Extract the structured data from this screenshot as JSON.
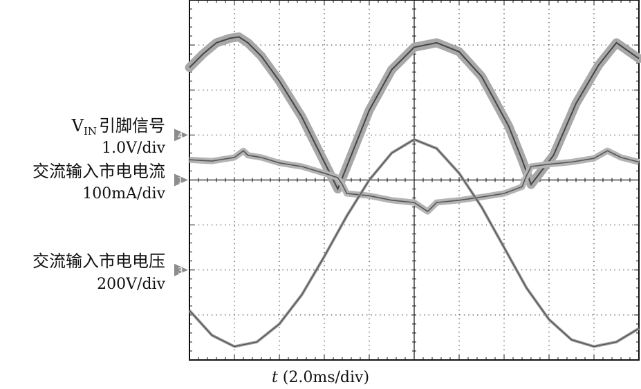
{
  "chart_data": {
    "type": "line",
    "title": "",
    "xlabel_var": "t",
    "xlabel_unit": "(2.0ms/div)",
    "grid": true,
    "divisions": {
      "x": 10,
      "y": 8
    },
    "x_unit": "div",
    "xlim": [
      0,
      10
    ],
    "ylim": [
      -4,
      4
    ],
    "channels": [
      {
        "marker": "4",
        "name_main": "V",
        "name_sub": "IN",
        "name_rest": "引脚信号",
        "scale": "1.0V/div"
      },
      {
        "marker": "1",
        "name": "交流输入市电电流",
        "scale": "100mA/div"
      },
      {
        "marker": "3",
        "name": "交流输入市电电压",
        "scale": "200V/div"
      }
    ],
    "series": [
      {
        "channel": "4",
        "x": [
          0,
          0.3,
          0.6,
          0.9,
          1.1,
          1.3,
          1.6,
          2.0,
          2.5,
          3.0,
          3.3,
          3.5,
          4.0,
          4.5,
          5.0,
          5.5,
          6.0,
          6.5,
          7.1,
          7.4,
          7.6,
          8.1,
          8.6,
          9.1,
          9.5,
          10
        ],
        "y": [
          2.5,
          2.8,
          3.05,
          3.15,
          3.18,
          3.05,
          2.75,
          2.2,
          1.4,
          0.4,
          -0.2,
          0.3,
          1.55,
          2.45,
          2.95,
          3.05,
          2.85,
          2.3,
          1.2,
          0.45,
          -0.1,
          0.55,
          1.7,
          2.55,
          3.05,
          2.7
        ]
      },
      {
        "channel": "1",
        "x": [
          0,
          0.5,
          1.0,
          1.2,
          1.3,
          1.6,
          2.0,
          2.5,
          3.0,
          3.3,
          3.4,
          3.5,
          4.0,
          4.5,
          5.0,
          5.3,
          5.5,
          6.0,
          6.5,
          7.0,
          7.4,
          7.5,
          7.6,
          8.0,
          8.5,
          9.0,
          9.3,
          9.6,
          10
        ],
        "y": [
          0.45,
          0.42,
          0.5,
          0.65,
          0.55,
          0.5,
          0.38,
          0.3,
          0.15,
          0.05,
          -0.1,
          -0.3,
          -0.35,
          -0.45,
          -0.5,
          -0.7,
          -0.5,
          -0.45,
          -0.38,
          -0.3,
          -0.15,
          0.1,
          0.3,
          0.35,
          0.4,
          0.48,
          0.65,
          0.5,
          0.4
        ]
      },
      {
        "channel": "3",
        "x": [
          0,
          0.5,
          1.0,
          1.5,
          2.0,
          2.5,
          3.0,
          3.5,
          4.0,
          4.5,
          5.0,
          5.5,
          6.0,
          6.5,
          7.0,
          7.5,
          8.0,
          8.5,
          9.0,
          9.5,
          10
        ],
        "y": [
          -2.9,
          -3.45,
          -3.7,
          -3.6,
          -3.2,
          -2.55,
          -1.7,
          -0.8,
          0.0,
          0.6,
          0.9,
          0.7,
          0.15,
          -0.6,
          -1.5,
          -2.4,
          -3.1,
          -3.55,
          -3.7,
          -3.6,
          -3.3
        ]
      }
    ]
  }
}
